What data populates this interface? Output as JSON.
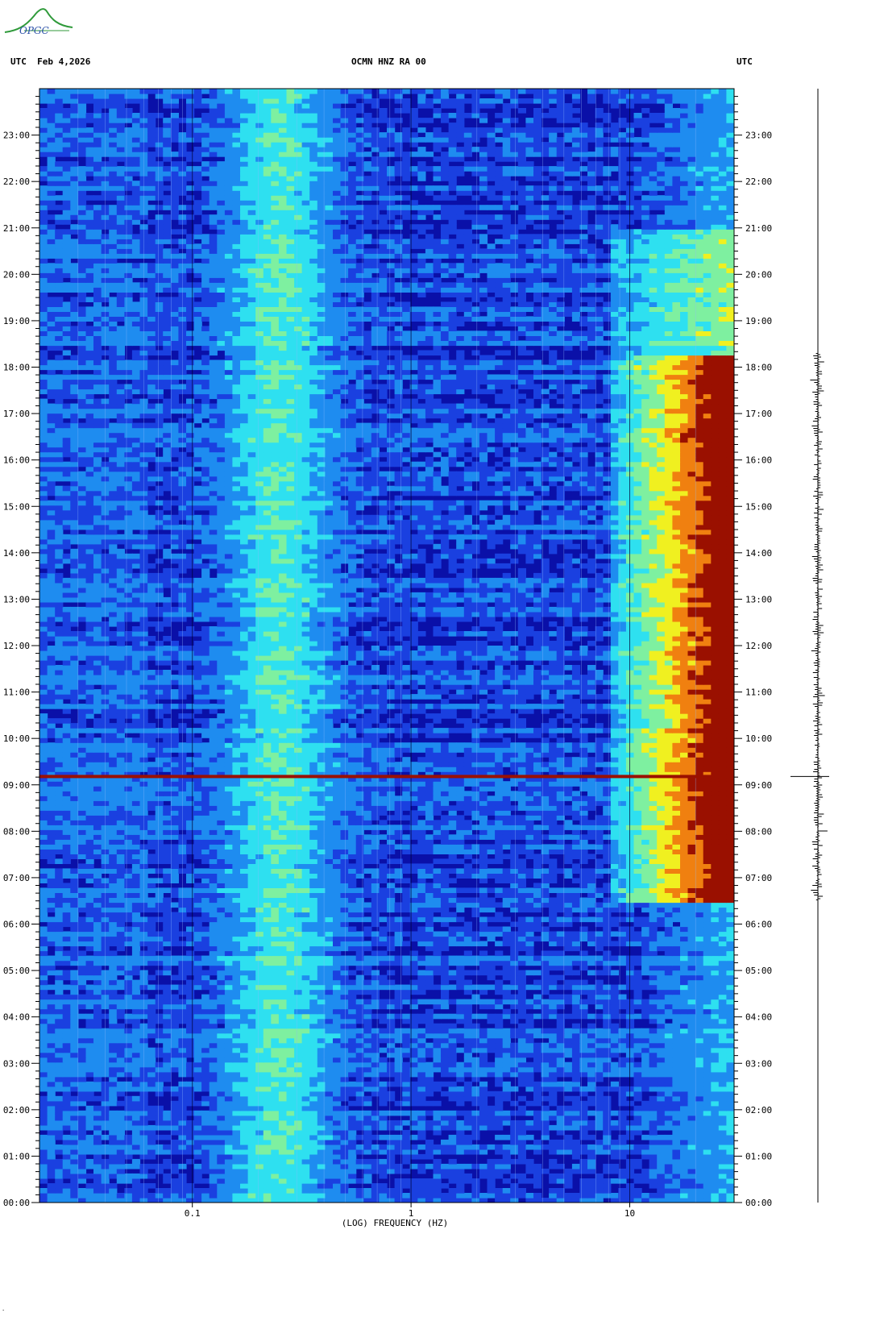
{
  "header": {
    "logo_text": "OPGC",
    "left_label": "UTC  Feb 4,2026",
    "center_label": "OCMN HNZ RA 00",
    "right_label": "UTC"
  },
  "chart_data": {
    "type": "heatmap",
    "title": "OCMN HNZ RA 00",
    "date": "Feb 4,2026",
    "xlabel": "(LOG) FREQUENCY (HZ)",
    "x_scale": "log",
    "xlim": [
      0.02,
      30
    ],
    "x_ticks": [
      {
        "value": 0.1,
        "label": "0.1"
      },
      {
        "value": 1,
        "label": "1"
      },
      {
        "value": 10,
        "label": "10"
      }
    ],
    "ylabel": "UTC",
    "ylim_hours": [
      0,
      24
    ],
    "y_ticks": [
      {
        "hour": 0,
        "label": "00:00"
      },
      {
        "hour": 1,
        "label": "01:00"
      },
      {
        "hour": 2,
        "label": "02:00"
      },
      {
        "hour": 3,
        "label": "03:00"
      },
      {
        "hour": 4,
        "label": "04:00"
      },
      {
        "hour": 5,
        "label": "05:00"
      },
      {
        "hour": 6,
        "label": "06:00"
      },
      {
        "hour": 7,
        "label": "07:00"
      },
      {
        "hour": 8,
        "label": "08:00"
      },
      {
        "hour": 9,
        "label": "09:00"
      },
      {
        "hour": 10,
        "label": "10:00"
      },
      {
        "hour": 11,
        "label": "11:00"
      },
      {
        "hour": 12,
        "label": "12:00"
      },
      {
        "hour": 13,
        "label": "13:00"
      },
      {
        "hour": 14,
        "label": "14:00"
      },
      {
        "hour": 15,
        "label": "15:00"
      },
      {
        "hour": 16,
        "label": "16:00"
      },
      {
        "hour": 17,
        "label": "17:00"
      },
      {
        "hour": 18,
        "label": "18:00"
      },
      {
        "hour": 19,
        "label": "19:00"
      },
      {
        "hour": 20,
        "label": "20:00"
      },
      {
        "hour": 21,
        "label": "21:00"
      },
      {
        "hour": 22,
        "label": "22:00"
      },
      {
        "hour": 23,
        "label": "23:00"
      }
    ],
    "microseism_band_hz": [
      0.12,
      0.4
    ],
    "microseism_peak_hz": 0.25,
    "cultural_noise_hours": [
      6.5,
      18.3
    ],
    "cultural_noise_min_hz": 8,
    "event_hour": 9.18,
    "colormap": [
      "#0a10a8",
      "#1a40e0",
      "#1e8cf0",
      "#2ee0f0",
      "#7ef0a0",
      "#f0f020",
      "#f08010",
      "#9a1000"
    ]
  }
}
